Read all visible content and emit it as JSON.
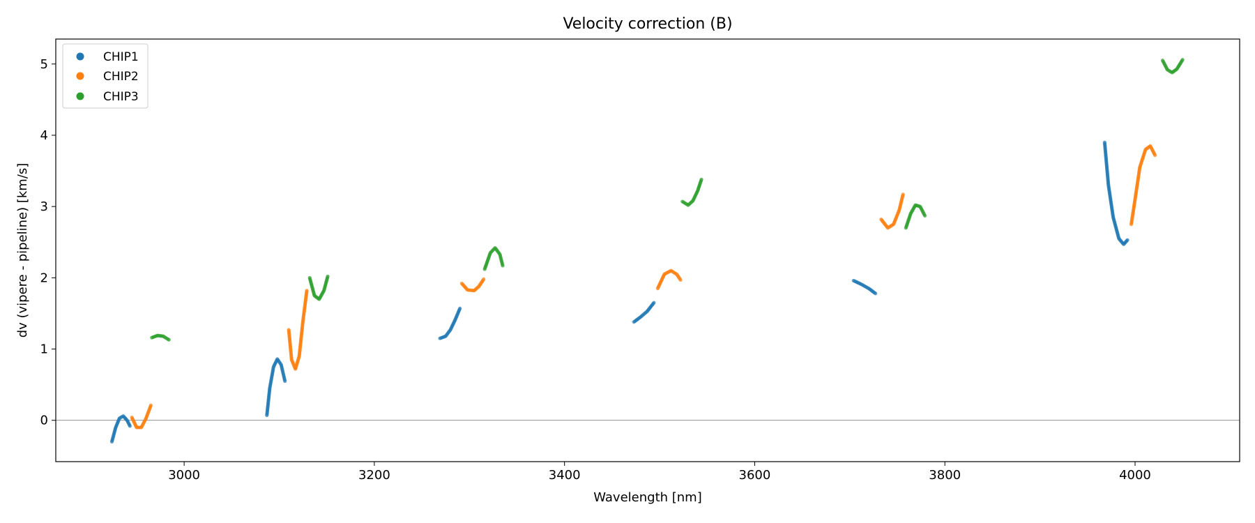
{
  "chart_data": {
    "type": "scatter",
    "title": "Velocity correction (B)",
    "xlabel": "Wavelength [nm]",
    "ylabel": "dv (vipere - pipeline) [km/s]",
    "xlim": [
      2865,
      4110
    ],
    "ylim": [
      -0.58,
      5.35
    ],
    "xticks": [
      3000,
      3200,
      3400,
      3600,
      3800,
      4000
    ],
    "yticks": [
      0,
      1,
      2,
      3,
      4,
      5
    ],
    "xtick_labels": [
      "3000",
      "3200",
      "3400",
      "3600",
      "3800",
      "4000"
    ],
    "ytick_labels": [
      "0",
      "1",
      "2",
      "3",
      "4",
      "5"
    ],
    "hline": 0,
    "legend": {
      "location": "top-left",
      "entries": [
        "CHIP1",
        "CHIP2",
        "CHIP3"
      ]
    },
    "colors": {
      "CHIP1": "#1f77b4",
      "CHIP2": "#ff7f0e",
      "CHIP3": "#2ca02c",
      "hline": "#808080"
    },
    "series": [
      {
        "name": "CHIP1",
        "segments": [
          {
            "x": [
              2924,
              2928,
              2932,
              2936,
              2940,
              2943
            ],
            "y": [
              -0.3,
              -0.1,
              0.03,
              0.06,
              0.0,
              -0.08
            ]
          },
          {
            "x": [
              3087,
              3090,
              3094,
              3098,
              3102,
              3106
            ],
            "y": [
              0.07,
              0.45,
              0.75,
              0.86,
              0.78,
              0.55
            ]
          },
          {
            "x": [
              3269,
              3275,
              3280,
              3285,
              3290
            ],
            "y": [
              1.15,
              1.18,
              1.27,
              1.41,
              1.57
            ]
          },
          {
            "x": [
              3473,
              3480,
              3487,
              3494
            ],
            "y": [
              1.38,
              1.45,
              1.53,
              1.65
            ]
          },
          {
            "x": [
              3704,
              3712,
              3720,
              3727
            ],
            "y": [
              1.96,
              1.91,
              1.85,
              1.78
            ]
          },
          {
            "x": [
              3968,
              3972,
              3977,
              3983,
              3988,
              3992
            ],
            "y": [
              3.9,
              3.3,
              2.85,
              2.55,
              2.47,
              2.53
            ]
          }
        ]
      },
      {
        "name": "CHIP2",
        "segments": [
          {
            "x": [
              2945,
              2950,
              2955,
              2960,
              2965
            ],
            "y": [
              0.04,
              -0.1,
              -0.1,
              0.03,
              0.21
            ]
          },
          {
            "x": [
              3110,
              3113,
              3117,
              3121,
              3125,
              3129
            ],
            "y": [
              1.27,
              0.85,
              0.72,
              0.9,
              1.4,
              1.82
            ]
          },
          {
            "x": [
              3292,
              3298,
              3305,
              3310,
              3315
            ],
            "y": [
              1.92,
              1.83,
              1.82,
              1.88,
              1.98
            ]
          },
          {
            "x": [
              3498,
              3505,
              3512,
              3518,
              3522
            ],
            "y": [
              1.85,
              2.05,
              2.1,
              2.05,
              1.97
            ]
          },
          {
            "x": [
              3733,
              3740,
              3746,
              3752,
              3756
            ],
            "y": [
              2.82,
              2.7,
              2.75,
              2.95,
              3.17
            ]
          },
          {
            "x": [
              3996,
              4000,
              4005,
              4011,
              4016,
              4021
            ],
            "y": [
              2.75,
              3.1,
              3.55,
              3.8,
              3.85,
              3.72
            ]
          }
        ]
      },
      {
        "name": "CHIP3",
        "segments": [
          {
            "x": [
              2966,
              2972,
              2978,
              2984
            ],
            "y": [
              1.16,
              1.19,
              1.18,
              1.13
            ]
          },
          {
            "x": [
              3132,
              3137,
              3142,
              3147,
              3151
            ],
            "y": [
              2.0,
              1.75,
              1.7,
              1.82,
              2.02
            ]
          },
          {
            "x": [
              3316,
              3322,
              3327,
              3332,
              3335
            ],
            "y": [
              2.12,
              2.35,
              2.42,
              2.33,
              2.17
            ]
          },
          {
            "x": [
              3524,
              3530,
              3535,
              3540,
              3544
            ],
            "y": [
              3.07,
              3.02,
              3.08,
              3.22,
              3.38
            ]
          },
          {
            "x": [
              3759,
              3764,
              3769,
              3774,
              3779
            ],
            "y": [
              2.7,
              2.9,
              3.02,
              3.0,
              2.87
            ]
          },
          {
            "x": [
              4029,
              4034,
              4039,
              4044,
              4050
            ],
            "y": [
              5.05,
              4.92,
              4.88,
              4.93,
              5.06
            ]
          }
        ]
      }
    ]
  }
}
